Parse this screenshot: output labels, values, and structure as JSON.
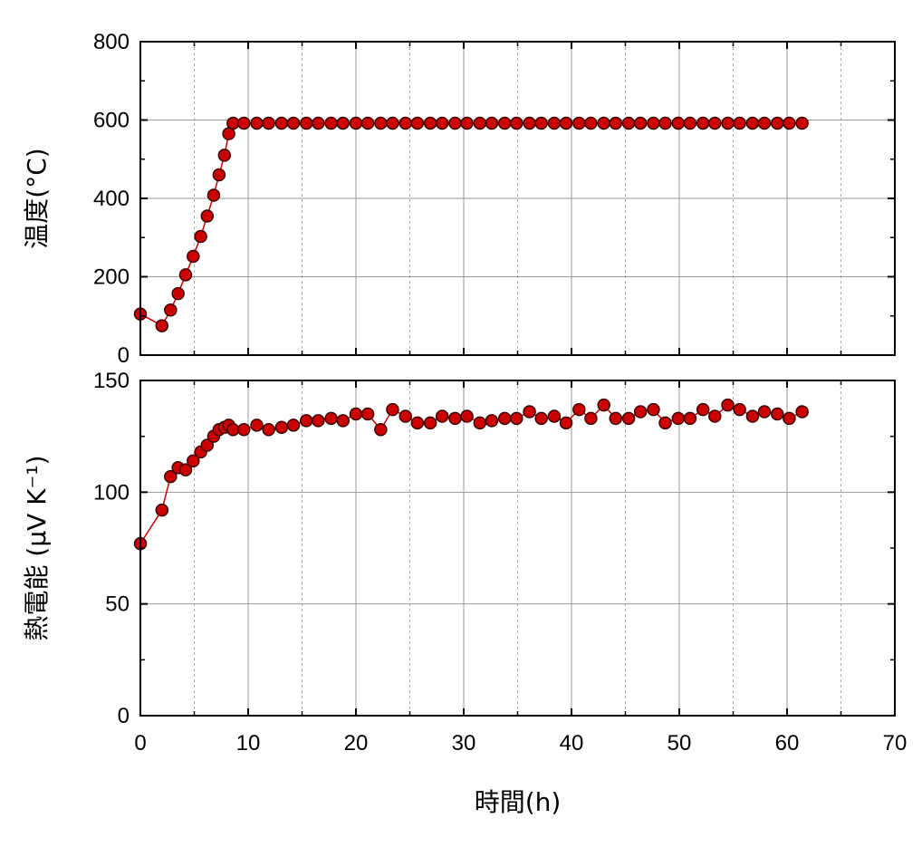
{
  "chart_data": [
    {
      "type": "line",
      "ylabel": "温度(°C)",
      "xlim": [
        0,
        70
      ],
      "ylim": [
        0,
        800
      ],
      "yticks": [
        0,
        200,
        400,
        600,
        800
      ],
      "xticks": [
        0,
        10,
        20,
        30,
        40,
        50,
        60,
        70
      ],
      "grid": true,
      "marker": "circle",
      "colors": {
        "marker_fill": "#cc0000",
        "marker_edge": "#3a0000",
        "line": "#cc0000"
      },
      "series": [
        {
          "x": [
            0,
            2,
            2.8,
            3.5,
            4.2,
            4.9,
            5.6,
            6.2,
            6.8,
            7.3,
            7.8,
            8.2,
            8.6,
            9.6,
            10.8,
            11.9,
            13.1,
            14.2,
            15.4,
            16.5,
            17.7,
            18.8,
            20,
            21.1,
            22.3,
            23.4,
            24.6,
            25.7,
            26.9,
            28,
            29.2,
            30.3,
            31.5,
            32.6,
            33.8,
            34.9,
            36.1,
            37.2,
            38.4,
            39.5,
            40.7,
            41.8,
            43,
            44.1,
            45.3,
            46.4,
            47.6,
            48.7,
            49.9,
            51,
            52.2,
            53.3,
            54.5,
            55.6,
            56.8,
            57.9,
            59.1,
            60.2,
            61.4
          ],
          "y": [
            105,
            75,
            115,
            157,
            205,
            252,
            303,
            355,
            408,
            460,
            510,
            565,
            592,
            592,
            592,
            592,
            592,
            592,
            592,
            592,
            592,
            592,
            592,
            592,
            592,
            592,
            592,
            592,
            592,
            592,
            592,
            592,
            592,
            592,
            592,
            592,
            592,
            592,
            592,
            592,
            592,
            592,
            592,
            592,
            592,
            592,
            592,
            592,
            592,
            592,
            592,
            592,
            592,
            592,
            592,
            592,
            592,
            592,
            592
          ]
        }
      ]
    },
    {
      "type": "line",
      "xlabel": "時間(h)",
      "ylabel": "熱電能 (μV K⁻¹)",
      "xlim": [
        0,
        70
      ],
      "ylim": [
        0,
        150
      ],
      "yticks": [
        0,
        50,
        100,
        150
      ],
      "xticks": [
        0,
        10,
        20,
        30,
        40,
        50,
        60,
        70
      ],
      "grid": true,
      "marker": "circle",
      "colors": {
        "marker_fill": "#cc0000",
        "marker_edge": "#3a0000",
        "line": "#cc0000"
      },
      "series": [
        {
          "x": [
            0,
            2,
            2.8,
            3.5,
            4.2,
            4.9,
            5.6,
            6.2,
            6.8,
            7.3,
            7.8,
            8.2,
            8.6,
            9.6,
            10.8,
            11.9,
            13.1,
            14.2,
            15.4,
            16.5,
            17.7,
            18.8,
            20,
            21.1,
            22.3,
            23.4,
            24.6,
            25.7,
            26.9,
            28,
            29.2,
            30.3,
            31.5,
            32.6,
            33.8,
            34.9,
            36.1,
            37.2,
            38.4,
            39.5,
            40.7,
            41.8,
            43,
            44.1,
            45.3,
            46.4,
            47.6,
            48.7,
            49.9,
            51,
            52.2,
            53.3,
            54.5,
            55.6,
            56.8,
            57.9,
            59.1,
            60.2,
            61.4
          ],
          "y": [
            77,
            92,
            107,
            111,
            110,
            114,
            118,
            121,
            125,
            128,
            129,
            130,
            128,
            128,
            130,
            128,
            129,
            130,
            132,
            132,
            133,
            132,
            135,
            135,
            128,
            137,
            134,
            131,
            131,
            134,
            133,
            134,
            131,
            132,
            133,
            133,
            136,
            133,
            134,
            131,
            137,
            133,
            139,
            133,
            133,
            136,
            137,
            131,
            133,
            133,
            137,
            134,
            139,
            137,
            134,
            136,
            135,
            133,
            136
          ]
        }
      ]
    }
  ]
}
